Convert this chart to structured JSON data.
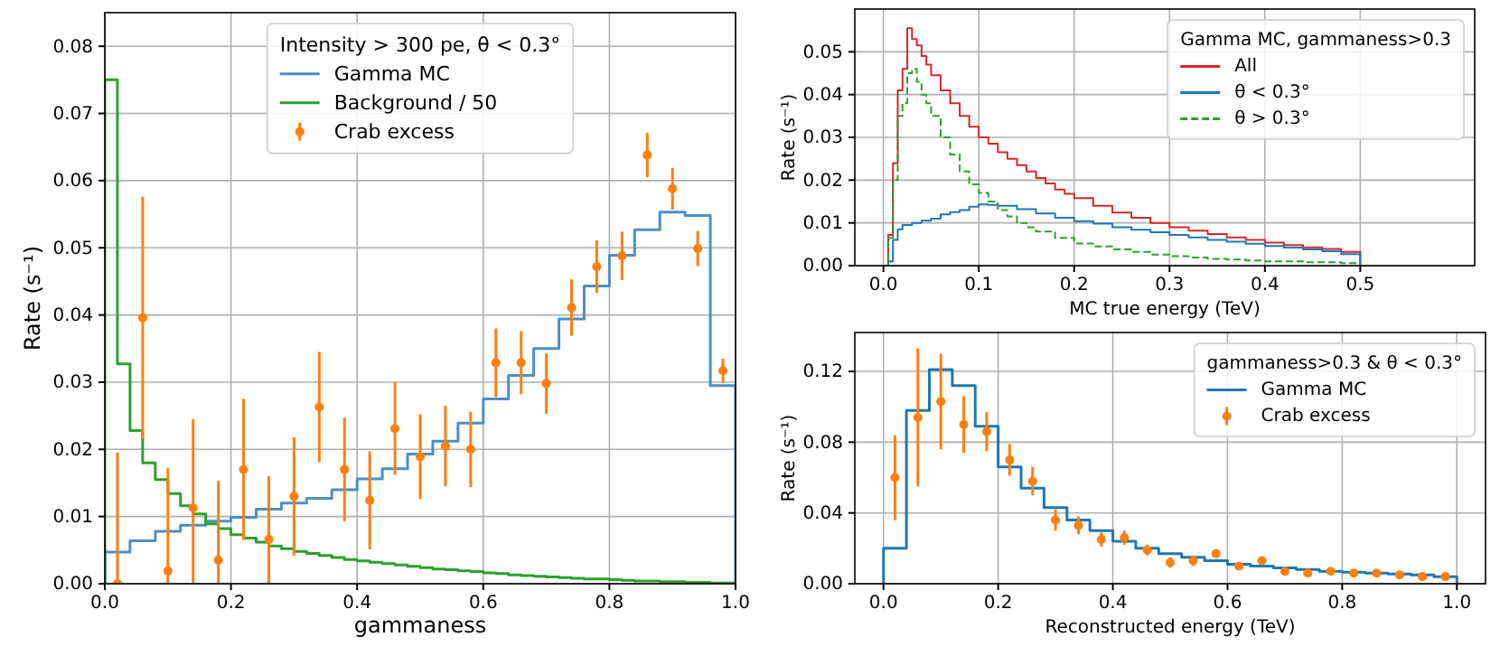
{
  "chart_data": [
    {
      "type": "histogram",
      "xlabel": "gammaness",
      "ylabel": "Rate (s⁻¹)",
      "legend_title": "Intensity > 300 pe, θ < 0.3°",
      "legend": "top",
      "grid": true,
      "xlim": [
        0,
        1
      ],
      "ylim": [
        0,
        0.085
      ],
      "xticks": [
        {
          "value": 0,
          "label": "0.0"
        },
        {
          "value": 0.2,
          "label": "0.2"
        },
        {
          "value": 0.4,
          "label": "0.4"
        },
        {
          "value": 0.6,
          "label": "0.6"
        },
        {
          "value": 0.8,
          "label": "0.8"
        },
        {
          "value": 1,
          "label": "1.0"
        }
      ],
      "yticks": [
        {
          "value": 0,
          "label": "0.00"
        },
        {
          "value": 0.01,
          "label": "0.01"
        },
        {
          "value": 0.02,
          "label": "0.02"
        },
        {
          "value": 0.03,
          "label": "0.03"
        },
        {
          "value": 0.04,
          "label": "0.04"
        },
        {
          "value": 0.05,
          "label": "0.05"
        },
        {
          "value": 0.06,
          "label": "0.06"
        },
        {
          "value": 0.07,
          "label": "0.07"
        },
        {
          "value": 0.08,
          "label": "0.08"
        }
      ],
      "series": [
        {
          "name": "Gamma MC",
          "color": "#4a90c8",
          "bins": [
            0,
            0.04,
            0.08,
            0.12,
            0.16,
            0.2,
            0.24,
            0.28,
            0.32,
            0.36,
            0.4,
            0.44,
            0.48,
            0.52,
            0.56,
            0.6,
            0.64,
            0.68,
            0.72,
            0.76,
            0.8,
            0.84,
            0.88,
            0.92,
            0.96,
            1
          ],
          "values": [
            0.0047,
            0.0064,
            0.0078,
            0.0087,
            0.0093,
            0.0099,
            0.0111,
            0.012,
            0.0127,
            0.014,
            0.0156,
            0.0171,
            0.0193,
            0.0212,
            0.0239,
            0.0275,
            0.031,
            0.035,
            0.0394,
            0.0443,
            0.0489,
            0.0527,
            0.0553,
            0.0548,
            0.0295
          ]
        },
        {
          "name": "Background / 50",
          "color": "#2ca02c",
          "bins": [
            0,
            0.02,
            0.04,
            0.06,
            0.08,
            0.1,
            0.12,
            0.14,
            0.16,
            0.18,
            0.2,
            0.22,
            0.24,
            0.26,
            0.28,
            0.3,
            0.32,
            0.34,
            0.36,
            0.38,
            0.4,
            0.42,
            0.44,
            0.46,
            0.48,
            0.5,
            0.52,
            0.54,
            0.56,
            0.58,
            0.6,
            0.62,
            0.64,
            0.66,
            0.68,
            0.7,
            0.72,
            0.74,
            0.76,
            0.78,
            0.8,
            0.82,
            0.84,
            0.86,
            0.88,
            0.9,
            0.92,
            0.94,
            0.96,
            0.98,
            1
          ],
          "values": [
            0.075,
            0.0327,
            0.0228,
            0.018,
            0.0155,
            0.0134,
            0.0116,
            0.0104,
            0.0089,
            0.0082,
            0.0073,
            0.0068,
            0.0062,
            0.0056,
            0.0052,
            0.0048,
            0.0045,
            0.0042,
            0.0039,
            0.0036,
            0.0034,
            0.0032,
            0.003,
            0.0028,
            0.0026,
            0.0024,
            0.0022,
            0.0021,
            0.0019,
            0.0018,
            0.0016,
            0.0015,
            0.0013,
            0.0012,
            0.0011,
            0.001,
            0.0009,
            0.0008,
            0.0007,
            0.0007,
            0.0006,
            0.0005,
            0.0004,
            0.0004,
            0.0003,
            0.0003,
            0.0002,
            0.0002,
            0.0001,
            0.0001
          ]
        },
        {
          "name": "Crab excess",
          "type": "scatter",
          "marker": "circle",
          "color": "#ff7f0e",
          "x": [
            0.02,
            0.06,
            0.1,
            0.14,
            0.18,
            0.22,
            0.26,
            0.3,
            0.34,
            0.38,
            0.42,
            0.46,
            0.5,
            0.54,
            0.58,
            0.62,
            0.66,
            0.7,
            0.74,
            0.78,
            0.82,
            0.86,
            0.9,
            0.94,
            0.98
          ],
          "values": [
            0,
            0.0396,
            0.0019,
            0.0113,
            0.0035,
            0.017,
            0.0066,
            0.013,
            0.0263,
            0.017,
            0.0124,
            0.0231,
            0.0189,
            0.0205,
            0.02,
            0.0329,
            0.0329,
            0.0298,
            0.0411,
            0.0472,
            0.0488,
            0.0638,
            0.0588,
            0.0499,
            0.0317
          ],
          "errors": [
            [
              0,
              0.0195
            ],
            0.018,
            [
              0,
              0.0172
            ],
            [
              0,
              0.0245
            ],
            [
              0,
              0.0153
            ],
            0.0105,
            [
              0,
              0.016
            ],
            0.0088,
            0.0082,
            0.0077,
            0.0073,
            0.0069,
            0.0063,
            0.006,
            0.0056,
            0.0051,
            0.0047,
            0.0045,
            0.0042,
            0.0039,
            0.0036,
            0.0033,
            0.0031,
            0.0026,
            0.0018
          ]
        }
      ]
    },
    {
      "type": "step",
      "xlabel": "MC true energy (TeV)",
      "ylabel": "Rate (s⁻¹)",
      "legend_title": "Gamma MC, gammaness>0.3",
      "legend": "top right",
      "grid": true,
      "xlim": [
        -0.03,
        0.62
      ],
      "ylim": [
        0,
        0.06
      ],
      "xticks": [
        {
          "value": 0,
          "label": "0.0"
        },
        0.1,
        0.2,
        0.3,
        0.4,
        0.5
      ],
      "yticks": [
        {
          "value": 0,
          "label": "0.00"
        },
        {
          "value": 0.01,
          "label": "0.01"
        },
        {
          "value": 0.02,
          "label": "0.02"
        },
        {
          "value": 0.03,
          "label": "0.03"
        },
        {
          "value": 0.04,
          "label": "0.04"
        },
        {
          "value": 0.05,
          "label": "0.05"
        }
      ],
      "series": [
        {
          "name": "All",
          "color": "#d62728",
          "x": [
            0,
            0.005,
            0.01,
            0.015,
            0.02,
            0.025,
            0.03,
            0.035,
            0.04,
            0.045,
            0.05,
            0.06,
            0.07,
            0.08,
            0.09,
            0.1,
            0.11,
            0.12,
            0.13,
            0.14,
            0.15,
            0.16,
            0.17,
            0.18,
            0.19,
            0.2,
            0.22,
            0.24,
            0.26,
            0.28,
            0.3,
            0.32,
            0.34,
            0.36,
            0.38,
            0.4,
            0.42,
            0.44,
            0.46,
            0.48,
            0.5
          ],
          "values": [
            0,
            0.0072,
            0.024,
            0.041,
            0.046,
            0.0555,
            0.053,
            0.0515,
            0.049,
            0.047,
            0.0445,
            0.041,
            0.038,
            0.035,
            0.0325,
            0.03,
            0.0285,
            0.0265,
            0.025,
            0.0235,
            0.022,
            0.0205,
            0.0192,
            0.0178,
            0.0168,
            0.0158,
            0.014,
            0.0124,
            0.0112,
            0.01,
            0.009,
            0.0082,
            0.0074,
            0.0066,
            0.006,
            0.0054,
            0.0048,
            0.0043,
            0.0039,
            0.0032,
            0
          ]
        },
        {
          "name": "θ < 0.3°",
          "color": "#1f77b4",
          "x": [
            0,
            0.005,
            0.01,
            0.015,
            0.02,
            0.03,
            0.04,
            0.05,
            0.06,
            0.07,
            0.08,
            0.09,
            0.1,
            0.11,
            0.12,
            0.14,
            0.16,
            0.18,
            0.2,
            0.22,
            0.24,
            0.26,
            0.28,
            0.3,
            0.32,
            0.34,
            0.36,
            0.38,
            0.4,
            0.42,
            0.44,
            0.46,
            0.48,
            0.5
          ],
          "values": [
            0,
            0.001,
            0.006,
            0.0085,
            0.0095,
            0.01,
            0.0105,
            0.011,
            0.012,
            0.0125,
            0.013,
            0.0138,
            0.0143,
            0.0142,
            0.014,
            0.0132,
            0.0122,
            0.0112,
            0.0104,
            0.0098,
            0.009,
            0.0084,
            0.0078,
            0.0072,
            0.0066,
            0.006,
            0.0056,
            0.0051,
            0.0046,
            0.0042,
            0.0038,
            0.0034,
            0.0027,
            0
          ]
        },
        {
          "name": "θ > 0.3°",
          "color": "#2ca02c",
          "line_style": "dashed",
          "x": [
            0,
            0.005,
            0.01,
            0.015,
            0.02,
            0.025,
            0.03,
            0.035,
            0.04,
            0.045,
            0.05,
            0.06,
            0.07,
            0.08,
            0.09,
            0.1,
            0.11,
            0.12,
            0.13,
            0.14,
            0.15,
            0.16,
            0.18,
            0.2,
            0.22,
            0.24,
            0.26,
            0.28,
            0.3,
            0.32,
            0.34,
            0.36,
            0.38,
            0.4,
            0.44,
            0.48,
            0.5
          ],
          "values": [
            0,
            0.0065,
            0.02,
            0.035,
            0.038,
            0.045,
            0.046,
            0.043,
            0.04,
            0.038,
            0.035,
            0.03,
            0.026,
            0.022,
            0.019,
            0.017,
            0.015,
            0.013,
            0.0115,
            0.01,
            0.009,
            0.008,
            0.0065,
            0.0052,
            0.0045,
            0.0038,
            0.0032,
            0.0026,
            0.0022,
            0.0019,
            0.0016,
            0.0014,
            0.0012,
            0.001,
            0.0008,
            0.0006,
            0
          ]
        }
      ]
    },
    {
      "type": "histogram",
      "xlabel": "Reconstructed energy (TeV)",
      "ylabel": "Rate (s⁻¹)",
      "legend_title": "gammaness>0.3 & θ < 0.3°",
      "legend": "top right",
      "grid": true,
      "xlim": [
        -0.05,
        1.05
      ],
      "ylim": [
        0,
        0.142
      ],
      "xticks": [
        {
          "value": 0,
          "label": "0.0"
        },
        {
          "value": 0.2,
          "label": "0.2"
        },
        {
          "value": 0.4,
          "label": "0.4"
        },
        {
          "value": 0.6,
          "label": "0.6"
        },
        {
          "value": 0.8,
          "label": "0.8"
        },
        {
          "value": 1,
          "label": "1.0"
        }
      ],
      "yticks": [
        {
          "value": 0,
          "label": "0.00"
        },
        {
          "value": 0.04,
          "label": "0.04"
        },
        {
          "value": 0.08,
          "label": "0.08"
        },
        {
          "value": 0.12,
          "label": "0.12"
        }
      ],
      "series": [
        {
          "name": "Gamma MC",
          "color": "#1f77b4",
          "bins": [
            0,
            0.04,
            0.08,
            0.12,
            0.16,
            0.2,
            0.24,
            0.28,
            0.32,
            0.36,
            0.4,
            0.44,
            0.48,
            0.52,
            0.56,
            0.6,
            0.64,
            0.68,
            0.72,
            0.76,
            0.8,
            0.84,
            0.88,
            0.92,
            0.96,
            1
          ],
          "values": [
            0.02,
            0.098,
            0.121,
            0.112,
            0.089,
            0.066,
            0.054,
            0.043,
            0.036,
            0.03,
            0.024,
            0.02,
            0.017,
            0.015,
            0.013,
            0.011,
            0.01,
            0.009,
            0.008,
            0.007,
            0.0065,
            0.006,
            0.0055,
            0.005,
            0.004
          ]
        },
        {
          "name": "Crab excess",
          "type": "scatter",
          "marker": "circle",
          "color": "#ff7f0e",
          "x": [
            0.02,
            0.06,
            0.1,
            0.14,
            0.18,
            0.22,
            0.26,
            0.3,
            0.34,
            0.38,
            0.42,
            0.46,
            0.5,
            0.54,
            0.58,
            0.62,
            0.66,
            0.7,
            0.74,
            0.78,
            0.82,
            0.86,
            0.9,
            0.94,
            0.98
          ],
          "values": [
            0.06,
            0.094,
            0.103,
            0.09,
            0.086,
            0.07,
            0.058,
            0.036,
            0.033,
            0.025,
            0.026,
            0.019,
            0.012,
            0.013,
            0.017,
            0.01,
            0.013,
            0.007,
            0.006,
            0.007,
            0.006,
            0.006,
            0.005,
            0.004,
            0.004
          ],
          "errors": [
            0.024,
            0.039,
            0.027,
            0.016,
            0.011,
            0.009,
            0.008,
            0.006,
            0.005,
            0.004,
            0.004,
            0.003,
            0.003,
            0.003,
            0.002,
            0.002,
            0.002,
            0.0015,
            0.0015,
            0.0015,
            0.0015,
            0.001,
            0.001,
            0.001,
            0.001
          ]
        }
      ]
    }
  ]
}
